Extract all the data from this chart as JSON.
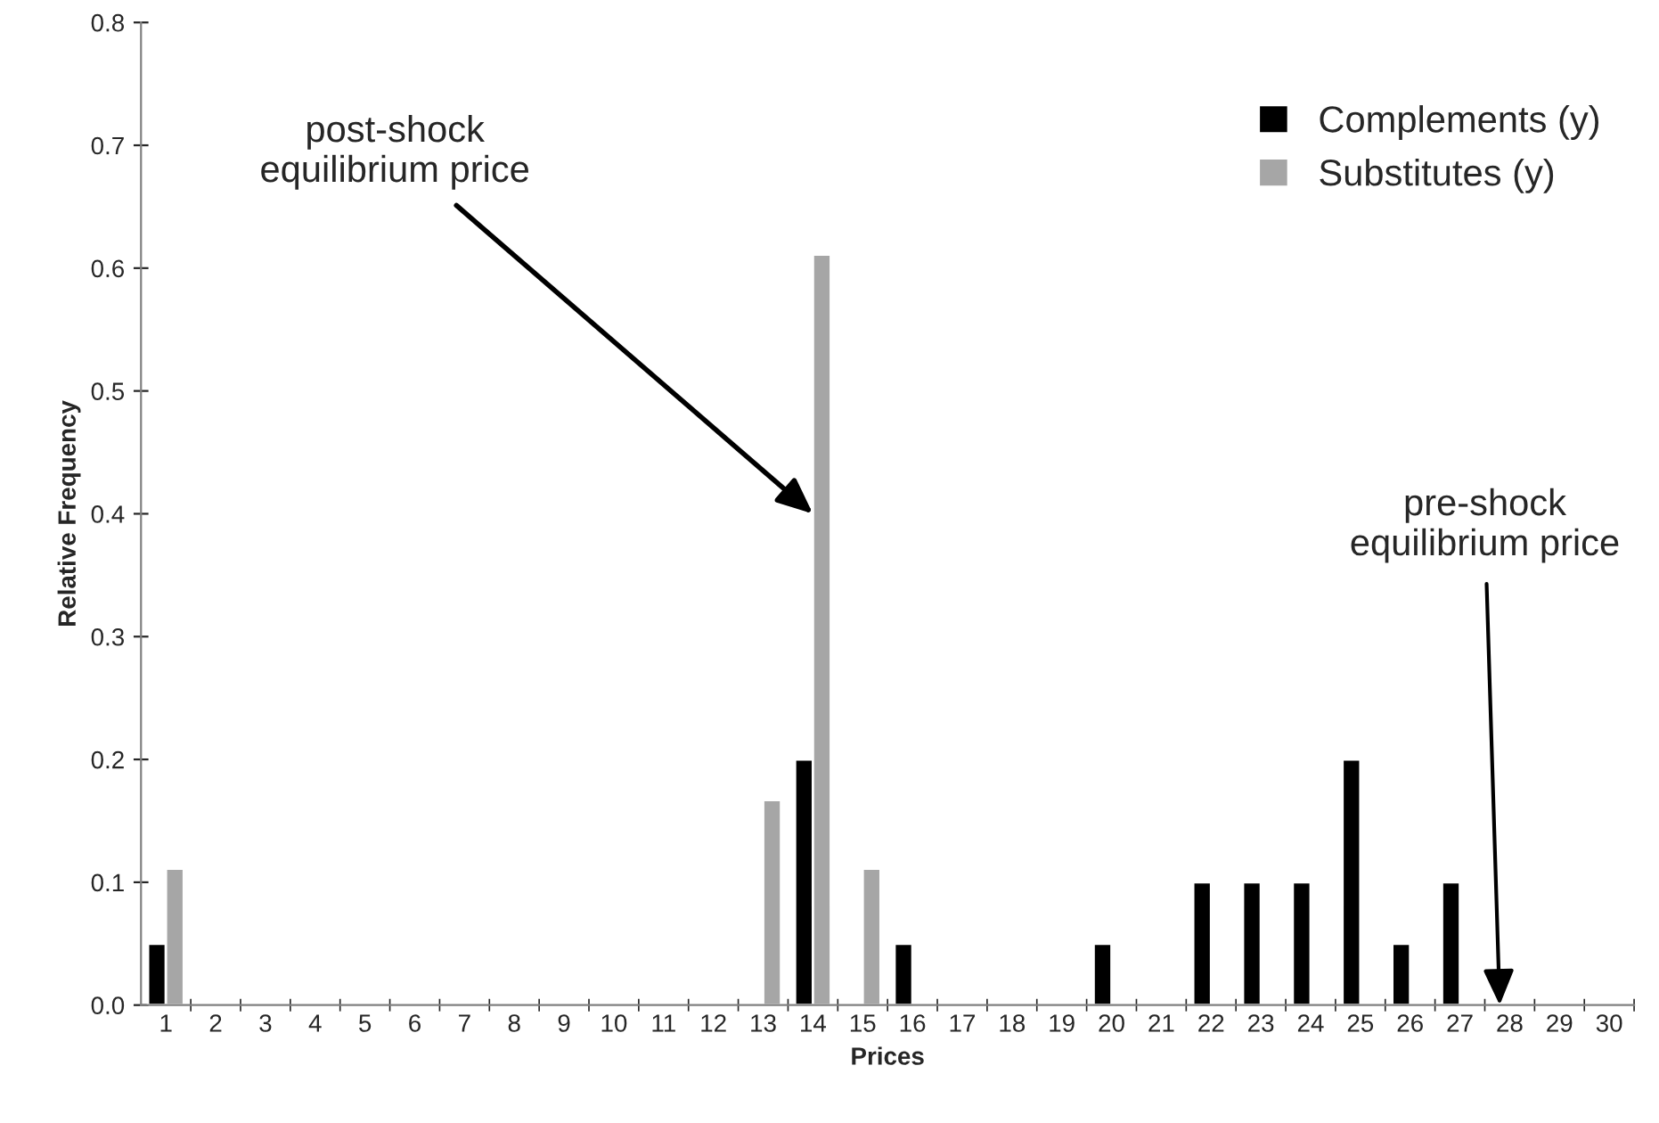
{
  "chart_data": {
    "type": "bar",
    "xlabel": "Prices",
    "ylabel": "Relative Frequency",
    "categories": [
      "1",
      "2",
      "3",
      "4",
      "5",
      "6",
      "7",
      "8",
      "9",
      "10",
      "11",
      "12",
      "13",
      "14",
      "15",
      "16",
      "17",
      "18",
      "19",
      "20",
      "21",
      "22",
      "23",
      "24",
      "25",
      "26",
      "27",
      "28",
      "29",
      "30"
    ],
    "series": [
      {
        "name": "Complements (y)",
        "color": "#000000",
        "values": [
          0.05,
          null,
          null,
          null,
          null,
          null,
          null,
          null,
          null,
          null,
          null,
          null,
          null,
          0.2,
          null,
          0.05,
          null,
          null,
          null,
          0.05,
          null,
          0.1,
          0.1,
          0.1,
          0.2,
          0.05,
          0.1,
          null,
          null,
          null
        ]
      },
      {
        "name": "Substitutes (y)",
        "color": "#a6a6a6",
        "values": [
          0.111,
          null,
          null,
          null,
          null,
          null,
          null,
          null,
          null,
          null,
          null,
          null,
          0.167,
          0.611,
          0.111,
          null,
          null,
          null,
          null,
          null,
          null,
          null,
          null,
          null,
          null,
          null,
          null,
          null,
          null,
          null
        ]
      }
    ],
    "ylim": [
      0,
      0.8
    ],
    "yticks": [
      {
        "value": 0,
        "label": "0.0"
      },
      0.1,
      0.2,
      0.3,
      0.4,
      0.5,
      0.6,
      0.7,
      0.8
    ],
    "annotations": [
      {
        "text": "post-shock\nequilibrium price",
        "x": "14",
        "y": 0.4
      },
      "pre-shock\nequilibrium price"
    ],
    "legend": "top right",
    "grid": false
  }
}
